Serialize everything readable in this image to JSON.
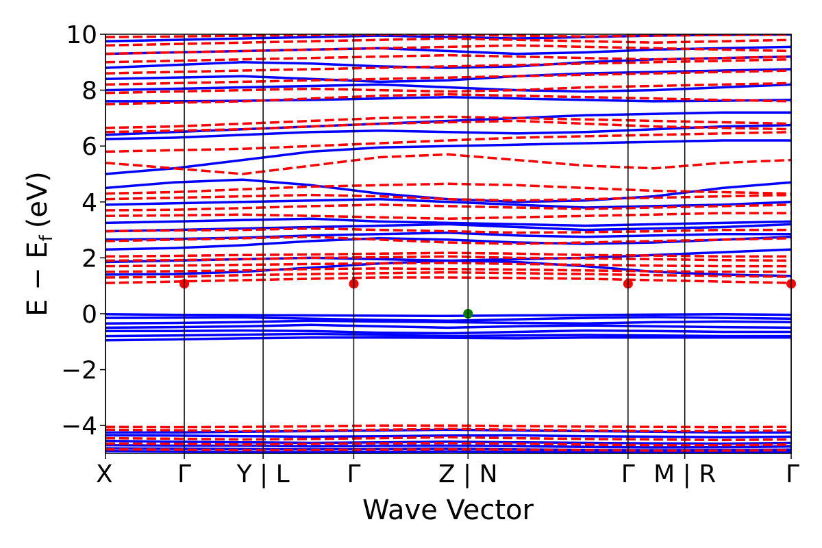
{
  "chart_data": {
    "type": "line",
    "xlabel": "Wave Vector",
    "ylabel_main": "E − E",
    "ylabel_sub": "f",
    "ylabel_unit": "(eV)",
    "ylim": [
      -5,
      10
    ],
    "xlim": [
      0,
      8.7
    ],
    "grid": false,
    "y_ticks": [
      {
        "value": 10,
        "label": "10"
      },
      {
        "value": 8,
        "label": "8"
      },
      {
        "value": 6,
        "label": "6"
      },
      {
        "value": 4,
        "label": "4"
      },
      {
        "value": 2,
        "label": "2"
      },
      {
        "value": 0,
        "label": "0"
      },
      {
        "value": -2,
        "label": "−2"
      },
      {
        "value": -4,
        "label": "−4"
      }
    ],
    "x_ticks": [
      {
        "value": 0,
        "label": "X"
      },
      {
        "value": 1.0,
        "label": "Γ"
      },
      {
        "value": 2.0,
        "label": "Y | L"
      },
      {
        "value": 3.15,
        "label": "Γ"
      },
      {
        "value": 4.6,
        "label": "Z | N"
      },
      {
        "value": 6.63,
        "label": "Γ"
      },
      {
        "value": 7.35,
        "label": "M | R"
      },
      {
        "value": 8.7,
        "label": "Γ"
      }
    ],
    "segment_boundaries": [
      0,
      1.0,
      2.0,
      3.15,
      4.6,
      6.63,
      7.35,
      8.7
    ],
    "series": [
      {
        "style": "solid",
        "color": "#0000ff",
        "bands": [
          [
            -0.02,
            -0.04,
            -0.05,
            -0.06,
            -0.07,
            -0.08,
            -0.06,
            -0.05,
            -0.03,
            -0.02,
            -0.04
          ],
          [
            -0.15,
            -0.14,
            -0.13,
            -0.18,
            -0.22,
            -0.25,
            -0.2,
            -0.15,
            -0.12,
            -0.15,
            -0.18
          ],
          [
            -0.35,
            -0.33,
            -0.3,
            -0.25,
            -0.28,
            -0.3,
            -0.33,
            -0.35,
            -0.3,
            -0.28,
            -0.3
          ],
          [
            -0.5,
            -0.48,
            -0.45,
            -0.4,
            -0.45,
            -0.5,
            -0.45,
            -0.42,
            -0.45,
            -0.48,
            -0.5
          ],
          [
            -0.62,
            -0.62,
            -0.6,
            -0.62,
            -0.68,
            -0.7,
            -0.65,
            -0.6,
            -0.62,
            -0.65,
            -0.65
          ],
          [
            -0.8,
            -0.78,
            -0.75,
            -0.72,
            -0.76,
            -0.8,
            -0.78,
            -0.76,
            -0.78,
            -0.8,
            -0.8
          ],
          [
            -0.95,
            -0.92,
            -0.88,
            -0.85,
            -0.85,
            -0.86,
            -0.88,
            -0.85,
            -0.85,
            -0.85,
            -0.85
          ],
          [
            1.4,
            1.42,
            1.5,
            1.65,
            1.8,
            1.9,
            1.85,
            1.7,
            1.5,
            1.4,
            1.35
          ],
          [
            1.85,
            1.9,
            1.95,
            2.0,
            1.95,
            1.9,
            1.95,
            2.0,
            2.1,
            2.2,
            2.3
          ],
          [
            2.3,
            2.35,
            2.45,
            2.6,
            2.7,
            2.65,
            2.55,
            2.5,
            2.55,
            2.65,
            2.75
          ],
          [
            2.65,
            2.68,
            2.72,
            2.8,
            2.85,
            2.9,
            2.8,
            2.75,
            2.8,
            2.85,
            2.85
          ],
          [
            2.95,
            3.0,
            3.05,
            3.1,
            3.15,
            3.2,
            3.1,
            3.0,
            3.05,
            3.1,
            3.2
          ],
          [
            3.25,
            3.3,
            3.35,
            3.4,
            3.3,
            3.25,
            3.2,
            3.15,
            3.2,
            3.25,
            3.3
          ],
          [
            3.9,
            3.95,
            4.0,
            4.05,
            4.1,
            4.0,
            3.9,
            3.8,
            3.85,
            3.9,
            4.0
          ],
          [
            4.5,
            4.7,
            4.8,
            4.6,
            4.3,
            4.1,
            4.0,
            4.05,
            4.2,
            4.5,
            4.7
          ],
          [
            5.0,
            5.2,
            5.5,
            5.8,
            5.95,
            6.0,
            6.05,
            6.1,
            6.15,
            6.2,
            6.2
          ],
          [
            6.25,
            6.3,
            6.4,
            6.5,
            6.55,
            6.5,
            6.45,
            6.5,
            6.6,
            6.7,
            6.75
          ],
          [
            6.4,
            6.5,
            6.6,
            6.7,
            6.8,
            6.9,
            7.0,
            7.1,
            7.15,
            7.2,
            7.2
          ],
          [
            7.6,
            7.6,
            7.62,
            7.65,
            7.7,
            7.75,
            7.7,
            7.65,
            7.6,
            7.62,
            7.65
          ],
          [
            8.0,
            8.05,
            8.1,
            8.15,
            8.2,
            8.1,
            8.0,
            7.95,
            8.0,
            8.1,
            8.2
          ],
          [
            8.4,
            8.45,
            8.5,
            8.4,
            8.3,
            8.35,
            8.5,
            8.6,
            8.65,
            8.7,
            8.75
          ],
          [
            8.8,
            8.9,
            9.0,
            8.95,
            8.85,
            8.8,
            8.85,
            9.0,
            9.1,
            9.15,
            9.2
          ],
          [
            9.3,
            9.35,
            9.4,
            9.45,
            9.5,
            9.4,
            9.3,
            9.35,
            9.45,
            9.5,
            9.55
          ],
          [
            9.75,
            9.8,
            9.85,
            9.9,
            9.95,
            9.9,
            9.85,
            9.9,
            9.95,
            9.98,
            9.99
          ]
        ]
      },
      {
        "style": "dashed",
        "color": "#ff0000",
        "bands": [
          [
            1.1,
            1.15,
            1.2,
            1.25,
            1.3,
            1.3,
            1.28,
            1.25,
            1.2,
            1.15,
            1.1
          ],
          [
            1.3,
            1.32,
            1.38,
            1.42,
            1.45,
            1.48,
            1.45,
            1.42,
            1.38,
            1.35,
            1.32
          ],
          [
            1.5,
            1.52,
            1.55,
            1.6,
            1.62,
            1.6,
            1.58,
            1.55,
            1.52,
            1.5,
            1.5
          ],
          [
            1.7,
            1.72,
            1.75,
            1.78,
            1.8,
            1.82,
            1.78,
            1.75,
            1.72,
            1.7,
            1.7
          ],
          [
            1.9,
            1.92,
            1.95,
            2.0,
            2.02,
            2.05,
            2.0,
            1.98,
            1.95,
            1.92,
            1.9
          ],
          [
            2.05,
            2.07,
            2.1,
            2.12,
            2.15,
            2.18,
            2.15,
            2.1,
            2.08,
            2.05,
            2.05
          ],
          [
            2.6,
            2.65,
            2.7,
            2.75,
            2.65,
            2.55,
            2.5,
            2.55,
            2.6,
            2.65,
            2.7
          ],
          [
            2.95,
            2.98,
            3.0,
            3.05,
            3.0,
            2.95,
            2.9,
            2.92,
            2.95,
            3.0,
            3.0
          ],
          [
            3.5,
            3.52,
            3.55,
            3.5,
            3.45,
            3.4,
            3.45,
            3.5,
            3.55,
            3.6,
            3.6
          ],
          [
            3.7,
            3.72,
            3.78,
            3.85,
            3.9,
            3.85,
            3.8,
            3.75,
            3.8,
            3.85,
            3.9
          ],
          [
            4.1,
            4.15,
            4.2,
            4.25,
            4.2,
            4.1,
            4.05,
            4.1,
            4.15,
            4.2,
            4.25
          ],
          [
            4.3,
            4.35,
            4.45,
            4.55,
            4.6,
            4.65,
            4.6,
            4.5,
            4.4,
            4.35,
            4.3
          ],
          [
            5.4,
            5.2,
            5.0,
            5.3,
            5.6,
            5.7,
            5.5,
            5.3,
            5.2,
            5.4,
            5.5
          ],
          [
            5.8,
            5.85,
            5.9,
            6.0,
            6.1,
            6.2,
            6.3,
            6.35,
            6.4,
            6.45,
            6.5
          ],
          [
            6.5,
            6.55,
            6.6,
            6.7,
            6.8,
            6.85,
            6.9,
            6.8,
            6.7,
            6.65,
            6.6
          ],
          [
            6.65,
            6.7,
            6.8,
            6.9,
            7.0,
            7.05,
            7.0,
            6.95,
            6.9,
            6.85,
            6.8
          ],
          [
            7.5,
            7.55,
            7.6,
            7.7,
            7.8,
            7.85,
            7.8,
            7.75,
            7.7,
            7.65,
            7.6
          ],
          [
            7.9,
            7.95,
            8.0,
            8.05,
            8.0,
            7.95,
            8.0,
            8.1,
            8.15,
            8.2,
            8.25
          ],
          [
            8.2,
            8.25,
            8.3,
            8.35,
            8.4,
            8.45,
            8.5,
            8.55,
            8.6,
            8.65,
            8.7
          ],
          [
            8.6,
            8.65,
            8.7,
            8.75,
            8.8,
            8.85,
            8.9,
            8.95,
            9.0,
            9.05,
            9.1
          ],
          [
            9.0,
            9.05,
            9.1,
            9.15,
            9.2,
            9.25,
            9.2,
            9.15,
            9.1,
            9.15,
            9.2
          ],
          [
            9.3,
            9.35,
            9.4,
            9.45,
            9.5,
            9.55,
            9.6,
            9.55,
            9.5,
            9.45,
            9.4
          ],
          [
            9.6,
            9.65,
            9.7,
            9.75,
            9.8,
            9.85,
            9.8,
            9.75,
            9.7,
            9.75,
            9.8
          ],
          [
            9.9,
            9.92,
            9.95,
            9.97,
            9.99,
            9.98,
            9.95,
            9.92,
            9.95,
            9.97,
            9.99
          ]
        ]
      },
      {
        "style": "solid",
        "color": "#0000ff",
        "bands": [
          [
            -4.25,
            -4.25,
            -4.22,
            -4.2,
            -4.18,
            -4.15,
            -4.18,
            -4.2,
            -4.22,
            -4.25,
            -4.25
          ],
          [
            -4.35,
            -4.36,
            -4.38,
            -4.4,
            -4.38,
            -4.36,
            -4.35,
            -4.38,
            -4.4,
            -4.42,
            -4.4
          ],
          [
            -4.55,
            -4.58,
            -4.6,
            -4.62,
            -4.6,
            -4.58,
            -4.6,
            -4.62,
            -4.64,
            -4.65,
            -4.62
          ],
          [
            -4.7,
            -4.72,
            -4.72,
            -4.75,
            -4.73,
            -4.72,
            -4.74,
            -4.76,
            -4.78,
            -4.77,
            -4.75
          ],
          [
            -4.82,
            -4.83,
            -4.84,
            -4.85,
            -4.84,
            -4.83,
            -4.85,
            -4.87,
            -4.88,
            -4.87,
            -4.86
          ],
          [
            -4.92,
            -4.93,
            -4.94,
            -4.95,
            -4.94,
            -4.93,
            -4.94,
            -4.95,
            -4.96,
            -4.95,
            -4.94
          ]
        ]
      },
      {
        "style": "dashed",
        "color": "#ff0000",
        "bands": [
          [
            -4.05,
            -4.06,
            -4.05,
            -4.03,
            -4.0,
            -4.0,
            -4.02,
            -4.04,
            -4.05,
            -4.06,
            -4.05
          ],
          [
            -4.15,
            -4.17,
            -4.2,
            -4.18,
            -4.15,
            -4.12,
            -4.15,
            -4.18,
            -4.2,
            -4.2,
            -4.18
          ],
          [
            -4.45,
            -4.47,
            -4.5,
            -4.48,
            -4.45,
            -4.42,
            -4.45,
            -4.48,
            -4.5,
            -4.52,
            -4.5
          ],
          [
            -4.65,
            -4.66,
            -4.68,
            -4.66,
            -4.64,
            -4.63,
            -4.65,
            -4.68,
            -4.7,
            -4.7,
            -4.68
          ],
          [
            -4.85,
            -4.86,
            -4.88,
            -4.87,
            -4.86,
            -4.85,
            -4.86,
            -4.88,
            -4.9,
            -4.9,
            -4.88
          ]
        ]
      }
    ],
    "markers": [
      {
        "x": 1.0,
        "y": 1.07,
        "color": "#ff0000"
      },
      {
        "x": 3.15,
        "y": 1.07,
        "color": "#ff0000"
      },
      {
        "x": 6.63,
        "y": 1.07,
        "color": "#ff0000"
      },
      {
        "x": 8.7,
        "y": 1.07,
        "color": "#ff0000"
      },
      {
        "x": 4.6,
        "y": 0.0,
        "color": "#007f00"
      }
    ]
  }
}
